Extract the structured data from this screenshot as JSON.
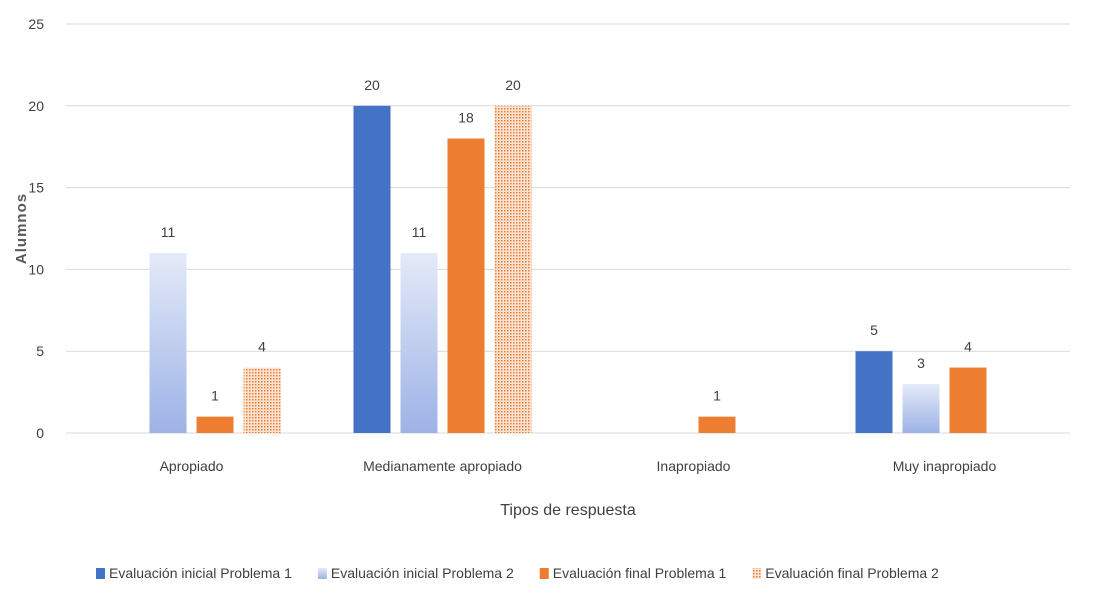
{
  "chart_data": {
    "type": "bar",
    "title": "",
    "xlabel": "Tipos de respuesta",
    "ylabel": "Alumnos",
    "ylim": [
      0,
      25
    ],
    "yticks": [
      0,
      5,
      10,
      15,
      20,
      25
    ],
    "grid": true,
    "legend_position": "bottom",
    "categories": [
      "Apropiado",
      "Medianamente apropiado",
      "Inapropiado",
      "Muy inapropiado"
    ],
    "series": [
      {
        "name": "Evaluación inicial Problema 1",
        "values": [
          null,
          20,
          null,
          5
        ],
        "color": "#4472C4",
        "style": "solid"
      },
      {
        "name": "Evaluación inicial Problema 2",
        "values": [
          11,
          11,
          null,
          3
        ],
        "color": "#B4C7E7",
        "style": "gradient"
      },
      {
        "name": "Evaluación final Problema 1",
        "values": [
          1,
          18,
          1,
          4
        ],
        "color": "#ED7D31",
        "style": "solid"
      },
      {
        "name": "Evaluación final Problema 2",
        "values": [
          4,
          20,
          null,
          null
        ],
        "color": "#ED7D31",
        "style": "dotted"
      }
    ]
  }
}
